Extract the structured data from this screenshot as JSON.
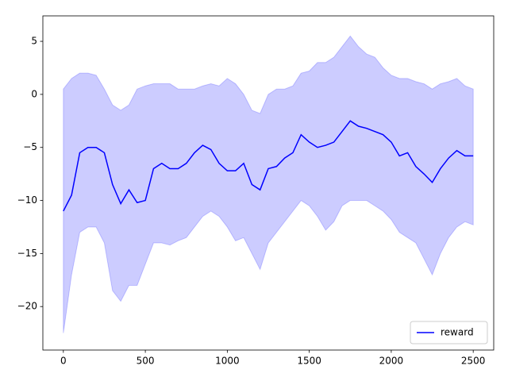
{
  "chart_data": {
    "type": "line",
    "x": [
      0,
      50,
      100,
      150,
      200,
      250,
      300,
      350,
      400,
      450,
      500,
      550,
      600,
      650,
      700,
      750,
      800,
      850,
      900,
      950,
      1000,
      1050,
      1100,
      1150,
      1200,
      1250,
      1300,
      1350,
      1400,
      1450,
      1500,
      1550,
      1600,
      1650,
      1700,
      1750,
      1800,
      1850,
      1900,
      1950,
      2000,
      2050,
      2100,
      2150,
      2200,
      2250,
      2300,
      2350,
      2400,
      2450,
      2500
    ],
    "series": [
      {
        "name": "reward",
        "color": "#0000ff",
        "values": [
          -11,
          -9.5,
          -5.5,
          -5,
          -5,
          -5.5,
          -8.5,
          -10.3,
          -9,
          -10.2,
          -10,
          -7,
          -6.5,
          -7,
          -7,
          -6.5,
          -5.5,
          -4.8,
          -5.2,
          -6.5,
          -7.2,
          -7.2,
          -6.5,
          -8.5,
          -9,
          -7,
          -6.8,
          -6,
          -5.5,
          -3.8,
          -4.5,
          -5,
          -4.8,
          -4.5,
          -3.5,
          -2.5,
          -3,
          -3.2,
          -3.5,
          -3.8,
          -4.5,
          -5.8,
          -5.5,
          -6.8,
          -7.5,
          -8.3,
          -7,
          -6,
          -5.3,
          -5.8,
          -5.8
        ]
      }
    ],
    "band": {
      "color": "#0000ff",
      "opacity": 0.2,
      "upper": [
        0.5,
        1.5,
        2,
        2,
        1.8,
        0.5,
        -1,
        -1.5,
        -1,
        0.5,
        0.8,
        1,
        1,
        1,
        0.5,
        0.5,
        0.5,
        0.8,
        1,
        0.8,
        1.5,
        1,
        0,
        -1.5,
        -1.8,
        0,
        0.5,
        0.5,
        0.8,
        2,
        2.2,
        3,
        3,
        3.5,
        4.5,
        5.5,
        4.5,
        3.8,
        3.5,
        2.5,
        1.8,
        1.5,
        1.5,
        1.2,
        1,
        0.5,
        1,
        1.2,
        1.5,
        0.8,
        0.5
      ],
      "lower": [
        -22.5,
        -17,
        -13,
        -12.5,
        -12.5,
        -14,
        -18.5,
        -19.5,
        -18,
        -18,
        -16,
        -14,
        -14,
        -14.2,
        -13.8,
        -13.5,
        -12.5,
        -11.5,
        -11,
        -11.5,
        -12.5,
        -13.8,
        -13.5,
        -15,
        -16.5,
        -14,
        -13,
        -12,
        -11,
        -10,
        -10.5,
        -11.5,
        -12.8,
        -12,
        -10.5,
        -10,
        -10,
        -10,
        -10.5,
        -11,
        -11.8,
        -13,
        -13.5,
        -14,
        -15.5,
        -17,
        -15,
        -13.5,
        -12.5,
        -12,
        -12.3
      ]
    },
    "xlim": [
      -125,
      2625
    ],
    "ylim": [
      -24.1,
      7.4
    ],
    "xticks": [
      0,
      500,
      1000,
      1500,
      2000,
      2500
    ],
    "yticks": [
      {
        "value": -20,
        "label": "−20"
      },
      {
        "value": -15,
        "label": "−15"
      },
      {
        "value": -10,
        "label": "−10"
      },
      {
        "value": -5,
        "label": "−5"
      },
      0,
      5
    ],
    "legend": "lower right"
  }
}
